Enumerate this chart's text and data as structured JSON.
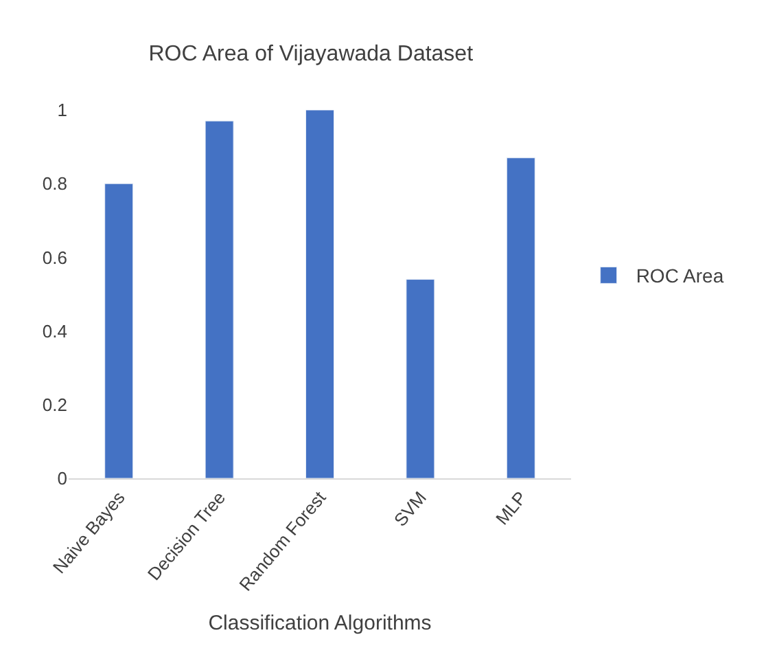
{
  "chart_data": {
    "type": "bar",
    "title": "ROC Area of Vijayawada Dataset",
    "xlabel": "Classification Algorithms",
    "categories": [
      "Naive Bayes",
      "Decision Tree",
      "Random Forest",
      "SVM",
      "MLP"
    ],
    "series": [
      {
        "name": "ROC Area",
        "color": "#4472c4",
        "values": [
          0.8,
          0.97,
          1.0,
          0.54,
          0.87
        ]
      }
    ],
    "ylim": [
      0,
      1
    ],
    "yticks": [
      0,
      0.2,
      0.4,
      0.6,
      0.8,
      1
    ],
    "legend": "right"
  }
}
